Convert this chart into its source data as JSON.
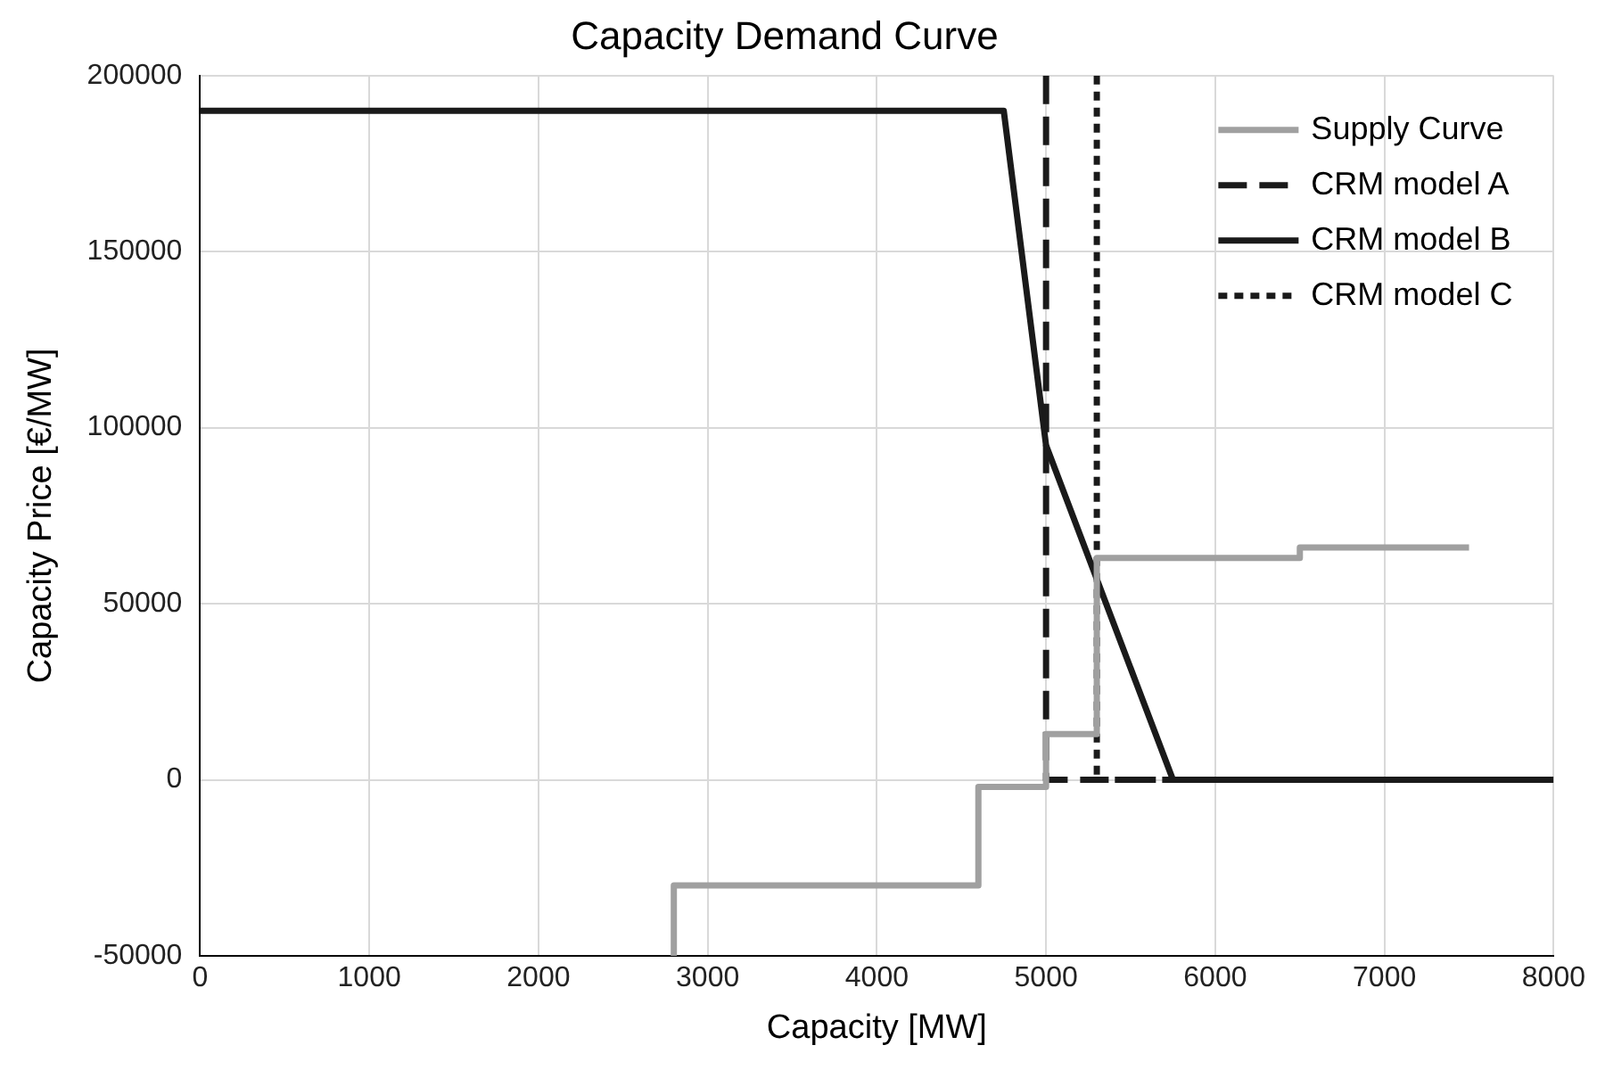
{
  "chart_data": {
    "type": "line",
    "title": "Capacity Demand Curve",
    "xlabel": "Capacity [MW]",
    "ylabel": "Capacity Price [€/MW]",
    "series": [
      {
        "name": "Supply Curve",
        "color": "#a0a0a0",
        "line_style": "solid",
        "x": [
          2800,
          2800,
          4600,
          4600,
          5000,
          5000,
          5300,
          5300,
          6500,
          6500,
          7500
        ],
        "values": [
          -50000,
          -30000,
          -30000,
          -2000,
          -2000,
          13000,
          13000,
          63000,
          63000,
          66000,
          66000
        ]
      },
      {
        "name": "CRM model A",
        "color": "#1a1a1a",
        "line_style": "dashed",
        "x": [
          5000,
          5000,
          5750
        ],
        "values": [
          200000,
          0,
          0
        ]
      },
      {
        "name": "CRM model B",
        "color": "#1a1a1a",
        "line_style": "solid",
        "x": [
          0,
          4750,
          5000,
          5750,
          8000
        ],
        "values": [
          190000,
          190000,
          95000,
          0,
          0
        ]
      },
      {
        "name": "CRM model C",
        "color": "#1a1a1a",
        "line_style": "dotted",
        "x": [
          5300,
          5300,
          5750
        ],
        "values": [
          200000,
          0,
          0
        ]
      }
    ],
    "xlim": [
      0,
      8000
    ],
    "xticks": [
      0,
      1000,
      2000,
      3000,
      4000,
      5000,
      6000,
      7000,
      8000
    ],
    "ylim": [
      -50000,
      200000
    ],
    "yticks": [
      -50000,
      0,
      50000,
      100000,
      150000,
      200000
    ],
    "grid": true,
    "legend": "top right",
    "marker": "none"
  }
}
